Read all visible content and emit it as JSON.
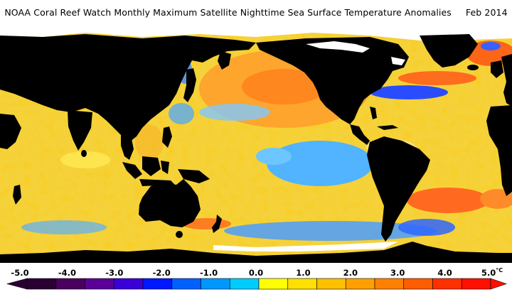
{
  "map": {
    "title": "NOAA Coral Reef Watch Monthly Maximum Satellite Nighttime Sea Surface Temperature Anomalies",
    "date": "Feb 2014",
    "land_color": "#000000",
    "ice_color": "#ffffff",
    "legend": {
      "unit": "°C",
      "min": -5.0,
      "max": 5.0,
      "tick_labels": [
        "-5.0",
        "-4.0",
        "-3.0",
        "-2.0",
        "-1.0",
        "0.0",
        "1.0",
        "2.0",
        "3.0",
        "4.0",
        "5.0"
      ],
      "colors": [
        "#2a0033",
        "#4a005f",
        "#5a0099",
        "#3a00d8",
        "#0018ff",
        "#0060ff",
        "#0098ff",
        "#00ccff",
        "#ffff00",
        "#ffe000",
        "#ffc000",
        "#ffa000",
        "#ff8000",
        "#ff5c00",
        "#ff3000",
        "#ff1000"
      ]
    },
    "features": {
      "land": [
        "north-america",
        "south-america",
        "greenland",
        "eurasia",
        "africa",
        "arabia",
        "india",
        "southeast-asia",
        "japan",
        "indonesia",
        "new-guinea",
        "australia",
        "new-zealand",
        "madagascar",
        "uk",
        "antarctica"
      ],
      "anomaly_regions": [
        {
          "name": "central-pacific-cool-anomaly",
          "color": "#52b4ff"
        },
        {
          "name": "north-pacific-warm-anomaly",
          "color": "#ff9a2a"
        },
        {
          "name": "north-atlantic-cold-anomaly",
          "color": "#2a4cff"
        },
        {
          "name": "south-atlantic-warm-anomaly",
          "color": "#ff6a20"
        },
        {
          "name": "southern-ocean-cool-anomaly",
          "color": "#3f8cff"
        }
      ]
    }
  }
}
